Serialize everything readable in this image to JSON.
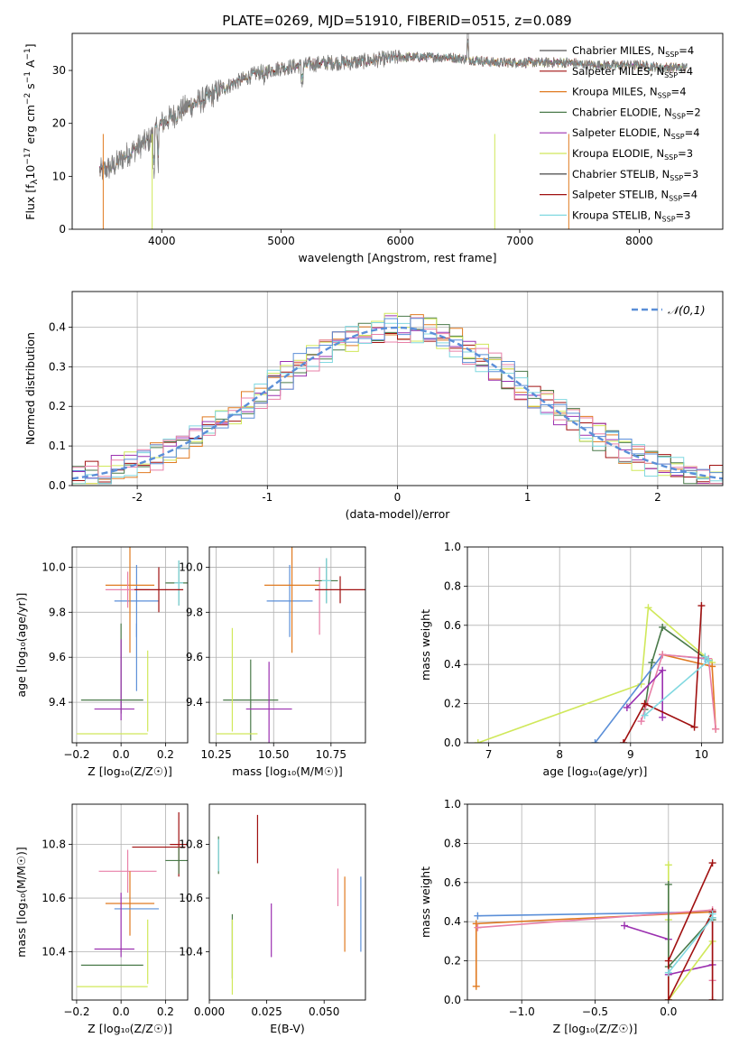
{
  "chart_data": [
    {
      "id": "spectrum",
      "type": "line",
      "title": "PLATE=0269, MJD=51910, FIBERID=0515, z=0.089",
      "xlabel": "wavelength [Angstrom, rest frame]",
      "ylabel": "Flux [f",
      "ylabel_parts": [
        "Flux [f",
        "λ",
        "10",
        "−17",
        " erg cm",
        "−2",
        " s",
        "−1",
        " A",
        "−1",
        "]"
      ],
      "xlim": [
        3250,
        8700
      ],
      "ylim": [
        0,
        37
      ],
      "xticks": [
        4000,
        5000,
        6000,
        7000,
        8000
      ],
      "yticks": [
        0,
        10,
        20,
        30
      ],
      "grid": false,
      "legend_position": "upper-right",
      "continuum": {
        "x": [
          3500,
          3600,
          3700,
          3800,
          3900,
          4000,
          4100,
          4200,
          4300,
          4400,
          4500,
          4600,
          4700,
          4800,
          4900,
          5000,
          5200,
          5400,
          5600,
          5800,
          6000,
          6200,
          6400,
          6600,
          6800,
          7000,
          7200,
          7400,
          7600,
          7800,
          8000,
          8200,
          8400
        ],
        "y": [
          11,
          12,
          14,
          15.5,
          17,
          20,
          21.5,
          23,
          24,
          25,
          26.5,
          27.5,
          28.5,
          29.5,
          30,
          30.5,
          31,
          31.5,
          31.5,
          32,
          32.5,
          32.5,
          32.5,
          32,
          31.5,
          31.5,
          31.5,
          31.5,
          31,
          31,
          31,
          30.5,
          30.5
        ]
      },
      "series": [
        {
          "name": "Chabrier MILES",
          "nssp": "4",
          "color": "#555555"
        },
        {
          "name": "Salpeter MILES",
          "nssp": "4",
          "color": "#a01010"
        },
        {
          "name": "Kroupa MILES",
          "nssp": "4",
          "color": "#e07a20"
        },
        {
          "name": "Chabrier ELODIE",
          "nssp": "2",
          "color": "#4a7a4a"
        },
        {
          "name": "Salpeter ELODIE",
          "nssp": "4",
          "color": "#9b30b0"
        },
        {
          "name": "Kroupa ELODIE",
          "nssp": "3",
          "color": "#d0e85a"
        },
        {
          "name": "Chabrier STELIB",
          "nssp": "3",
          "color": "#333333"
        },
        {
          "name": "Salpeter STELIB",
          "nssp": "4",
          "color": "#a01010"
        },
        {
          "name": "Kroupa STELIB",
          "nssp": "3",
          "color": "#80d8e0"
        }
      ],
      "observed_color": "#808080"
    },
    {
      "id": "residuals",
      "type": "line",
      "xlabel": "(data-model)/error",
      "ylabel": "Normed distribution",
      "xlim": [
        -2.5,
        2.5
      ],
      "ylim": [
        0,
        0.49
      ],
      "xticks": [
        -2,
        -1,
        0,
        1,
        2
      ],
      "yticks": [
        0.0,
        0.1,
        0.2,
        0.3,
        0.4
      ],
      "grid": true,
      "legend": "𝒩(0,1)",
      "legend_position": "upper-right",
      "gaussian_color": "#5b8fd8",
      "hist_colors": [
        "#e07a20",
        "#a01010",
        "#9b30b0",
        "#4a7a4a",
        "#d0e85a",
        "#80d8e0",
        "#e880a8",
        "#5b8fd8"
      ]
    },
    {
      "id": "age-vs-Z",
      "type": "scatter",
      "xlabel": "Z [log₁₀(Z/Z☉)]",
      "ylabel": "age  [log₁₀(age/yr)]",
      "xlim": [
        -0.22,
        0.3
      ],
      "ylim": [
        9.22,
        10.09
      ],
      "xticks": [
        -0.2,
        0.0,
        0.2
      ],
      "xticklabels": [
        "−0.2",
        "0.0",
        "0.2"
      ],
      "yticks": [
        9.4,
        9.6,
        9.8,
        10.0
      ],
      "yticklabels": [
        "9.4",
        "9.6",
        "9.8",
        "10.0"
      ],
      "grid": true,
      "points": [
        {
          "x": 0.07,
          "xerr": 0.1,
          "y": 9.85,
          "yerr": 0.16,
          "color": "#5b8fd8"
        },
        {
          "x": 0.04,
          "xerr": 0.11,
          "y": 9.92,
          "yerr": 0.3,
          "color": "#e07a20"
        },
        {
          "x": 0.03,
          "xerr": 0.1,
          "y": 9.9,
          "yerr": 0.08,
          "color": "#e880a8"
        },
        {
          "x": 0.26,
          "xerr": 0.06,
          "y": 9.93,
          "yerr": 0.1,
          "color": "#4a7a4a"
        },
        {
          "x": 0.26,
          "xerr": 0.02,
          "y": 9.93,
          "yerr": 0.1,
          "color": "#80d8e0"
        },
        {
          "x": 0.17,
          "xerr": 0.11,
          "y": 9.9,
          "yerr": 0.1,
          "color": "#a01010"
        },
        {
          "x": 0.07,
          "xerr": 0.0,
          "y": 9.6,
          "yerr": 0.15,
          "color": "#5b8fd8"
        },
        {
          "x": 0.12,
          "xerr": 0.0,
          "y": 9.45,
          "yerr": 0.18,
          "color": "#d0e85a"
        },
        {
          "x": 0.0,
          "xerr": 0.0,
          "y": 9.55,
          "yerr": 0.2,
          "color": "#4a7a4a"
        },
        {
          "x": 0.0,
          "xerr": 0.0,
          "y": 9.5,
          "yerr": 0.18,
          "color": "#9b30b0"
        },
        {
          "x": -0.04,
          "xerr": 0.14,
          "y": 9.41,
          "yerr": 0.0,
          "color": "#4a7a4a"
        },
        {
          "x": -0.03,
          "xerr": 0.09,
          "y": 9.37,
          "yerr": 0.0,
          "color": "#9b30b0"
        },
        {
          "x": -0.04,
          "xerr": 0.16,
          "y": 9.26,
          "yerr": 0.0,
          "color": "#d0e85a"
        }
      ]
    },
    {
      "id": "age-vs-mass",
      "type": "scatter",
      "xlabel": "mass [log₁₀(M/M☉)]",
      "ylabel": "",
      "xlim": [
        10.22,
        10.9
      ],
      "ylim": [
        9.22,
        10.09
      ],
      "xticks": [
        10.25,
        10.5,
        10.75
      ],
      "xticklabels": [
        "10.25",
        "10.50",
        "10.75"
      ],
      "yticks": [
        9.4,
        9.6,
        9.8,
        10.0
      ],
      "yticklabels": [
        "9.4",
        "9.6",
        "9.8",
        "10.0"
      ],
      "grid": true,
      "points": [
        {
          "x": 10.57,
          "xerr": 0.1,
          "y": 9.85,
          "yerr": 0.16,
          "color": "#5b8fd8"
        },
        {
          "x": 10.58,
          "xerr": 0.12,
          "y": 9.92,
          "yerr": 0.3,
          "color": "#e07a20"
        },
        {
          "x": 10.7,
          "xerr": 0.0,
          "y": 9.85,
          "yerr": 0.15,
          "color": "#e880a8"
        },
        {
          "x": 10.73,
          "xerr": 0.05,
          "y": 9.94,
          "yerr": 0.1,
          "color": "#4a7a4a"
        },
        {
          "x": 10.73,
          "xerr": 0.02,
          "y": 9.94,
          "yerr": 0.1,
          "color": "#80d8e0"
        },
        {
          "x": 10.79,
          "xerr": 0.11,
          "y": 9.9,
          "yerr": 0.06,
          "color": "#a01010"
        },
        {
          "x": 10.4,
          "xerr": 0.12,
          "y": 9.41,
          "yerr": 0.18,
          "color": "#4a7a4a"
        },
        {
          "x": 10.48,
          "xerr": 0.1,
          "y": 9.37,
          "yerr": 0.21,
          "color": "#9b30b0"
        },
        {
          "x": 10.32,
          "xerr": 0.0,
          "y": 9.5,
          "yerr": 0.23,
          "color": "#d0e85a"
        },
        {
          "x": 10.34,
          "xerr": 0.09,
          "y": 9.26,
          "yerr": 0.0,
          "color": "#d0e85a"
        }
      ]
    },
    {
      "id": "mass-weight-vs-age",
      "type": "line",
      "xlabel": "age  [log₁₀(age/yr)]",
      "ylabel": "mass weight",
      "xlim": [
        6.7,
        10.3
      ],
      "ylim": [
        0,
        1.0
      ],
      "xticks": [
        7,
        8,
        9,
        10
      ],
      "xticklabels": [
        "7",
        "8",
        "9",
        "10"
      ],
      "yticks": [
        0.0,
        0.2,
        0.4,
        0.6,
        0.8,
        1.0
      ],
      "yticklabels": [
        "0.0",
        "0.2",
        "0.4",
        "0.6",
        "0.8",
        "1.0"
      ],
      "grid": true,
      "series": [
        {
          "color": "#d0e85a",
          "x": [
            6.85,
            9.15,
            9.25,
            10.15
          ],
          "y": [
            0.0,
            0.3,
            0.69,
            0.41
          ]
        },
        {
          "color": "#4a7a4a",
          "x": [
            9.2,
            9.3,
            9.45,
            10.1
          ],
          "y": [
            0.17,
            0.41,
            0.59,
            0.42
          ]
        },
        {
          "color": "#5b8fd8",
          "x": [
            8.5,
            9.45,
            10.05,
            10.1
          ],
          "y": [
            0.0,
            0.45,
            0.43,
            0.42
          ]
        },
        {
          "color": "#e07a20",
          "x": [
            9.45,
            10.15,
            10.2
          ],
          "y": [
            0.45,
            0.39,
            0.07
          ]
        },
        {
          "color": "#e880a8",
          "x": [
            9.15,
            9.45,
            10.1,
            10.2
          ],
          "y": [
            0.11,
            0.45,
            0.43,
            0.07
          ]
        },
        {
          "color": "#9b30b0",
          "x": [
            8.95,
            9.45,
            9.45
          ],
          "y": [
            0.18,
            0.37,
            0.13
          ]
        },
        {
          "color": "#a01010",
          "x": [
            8.9,
            9.2,
            9.9,
            10.0
          ],
          "y": [
            0.0,
            0.2,
            0.08,
            0.7
          ]
        },
        {
          "color": "#80d8e0",
          "x": [
            9.2,
            10.1,
            10.05
          ],
          "y": [
            0.14,
            0.42,
            0.44
          ]
        }
      ]
    },
    {
      "id": "mass-vs-Z",
      "type": "scatter",
      "xlabel": "Z [log₁₀(Z/Z☉)]",
      "ylabel": "mass [log₁₀(M/M☉)]",
      "xlim": [
        -0.22,
        0.3
      ],
      "ylim": [
        10.22,
        10.95
      ],
      "xticks": [
        -0.2,
        0.0,
        0.2
      ],
      "xticklabels": [
        "−0.2",
        "0.0",
        "0.2"
      ],
      "yticks": [
        10.4,
        10.6,
        10.8
      ],
      "yticklabels": [
        "10.4",
        "10.6",
        "10.8"
      ],
      "grid": true,
      "points": [
        {
          "x": 0.26,
          "xerr": 0.04,
          "y": 10.8,
          "yerr": 0.12,
          "color": "#a01010"
        },
        {
          "x": 0.17,
          "xerr": 0.12,
          "y": 10.79,
          "yerr": 0.0,
          "color": "#a01010"
        },
        {
          "x": 0.26,
          "xerr": 0.06,
          "y": 10.74,
          "yerr": 0.05,
          "color": "#4a7a4a"
        },
        {
          "x": 0.03,
          "xerr": 0.13,
          "y": 10.7,
          "yerr": 0.08,
          "color": "#e880a8"
        },
        {
          "x": 0.04,
          "xerr": 0.11,
          "y": 10.58,
          "yerr": 0.12,
          "color": "#e07a20"
        },
        {
          "x": 0.07,
          "xerr": 0.1,
          "y": 10.56,
          "yerr": 0.0,
          "color": "#5b8fd8"
        },
        {
          "x": 0.0,
          "xerr": 0.0,
          "y": 10.5,
          "yerr": 0.12,
          "color": "#9b30b0"
        },
        {
          "x": 0.12,
          "xerr": 0.0,
          "y": 10.4,
          "yerr": 0.12,
          "color": "#d0e85a"
        },
        {
          "x": -0.03,
          "xerr": 0.09,
          "y": 10.41,
          "yerr": 0.0,
          "color": "#9b30b0"
        },
        {
          "x": -0.04,
          "xerr": 0.14,
          "y": 10.35,
          "yerr": 0.0,
          "color": "#4a7a4a"
        },
        {
          "x": -0.04,
          "xerr": 0.16,
          "y": 10.27,
          "yerr": 0.0,
          "color": "#d0e85a"
        }
      ]
    },
    {
      "id": "mass-vs-ebv",
      "type": "scatter",
      "xlabel": "E(B-V)",
      "ylabel": "",
      "xlim": [
        0.0,
        0.068
      ],
      "ylim": [
        10.22,
        10.95
      ],
      "xticks": [
        0.0,
        0.025,
        0.05
      ],
      "xticklabels": [
        "0.000",
        "0.025",
        "0.050"
      ],
      "yticks": [
        10.4,
        10.6,
        10.8
      ],
      "yticklabels": [
        "10.4",
        "10.6",
        "10.8"
      ],
      "grid": false,
      "points": [
        {
          "x": 0.004,
          "y": 10.76,
          "yerr": 0.07,
          "color": "#4a7a4a"
        },
        {
          "x": 0.004,
          "y": 10.76,
          "yerr": 0.06,
          "color": "#80d8e0"
        },
        {
          "x": 0.01,
          "y": 10.42,
          "yerr": 0.12,
          "color": "#4a7a4a"
        },
        {
          "x": 0.01,
          "y": 10.38,
          "yerr": 0.14,
          "color": "#d0e85a"
        },
        {
          "x": 0.021,
          "y": 10.82,
          "yerr": 0.09,
          "color": "#a01010"
        },
        {
          "x": 0.027,
          "y": 10.48,
          "yerr": 0.1,
          "color": "#9b30b0"
        },
        {
          "x": 0.056,
          "y": 10.64,
          "yerr": 0.07,
          "color": "#e880a8"
        },
        {
          "x": 0.059,
          "y": 10.54,
          "yerr": 0.14,
          "color": "#e07a20"
        },
        {
          "x": 0.066,
          "y": 10.54,
          "yerr": 0.14,
          "color": "#5b8fd8"
        }
      ]
    },
    {
      "id": "mass-weight-vs-Z",
      "type": "line",
      "xlabel": "Z [log₁₀(Z/Z☉)]",
      "ylabel": "mass weight",
      "xlim": [
        -1.37,
        0.37
      ],
      "ylim": [
        0,
        1.0
      ],
      "xticks": [
        -1.0,
        -0.5,
        0.0
      ],
      "xticklabels": [
        "−1.0",
        "−0.5",
        "0.0"
      ],
      "yticks": [
        0.0,
        0.2,
        0.4,
        0.6,
        0.8,
        1.0
      ],
      "yticklabels": [
        "0.0",
        "0.2",
        "0.4",
        "0.6",
        "0.8",
        "1.0"
      ],
      "grid": true,
      "series": [
        {
          "color": "#5b8fd8",
          "x": [
            -1.3,
            0.3
          ],
          "y": [
            0.43,
            0.45
          ]
        },
        {
          "color": "#e07a20",
          "x": [
            -1.31,
            -1.31,
            0.3
          ],
          "y": [
            0.07,
            0.39,
            0.45
          ]
        },
        {
          "color": "#e880a8",
          "x": [
            -1.3,
            0.3,
            0.3
          ],
          "y": [
            0.37,
            0.46,
            0.1
          ]
        },
        {
          "color": "#9b30b0",
          "x": [
            -0.3,
            0.0,
            0.0,
            0.3
          ],
          "y": [
            0.38,
            0.31,
            0.13,
            0.18
          ]
        },
        {
          "color": "#d0e85a",
          "x": [
            0.0,
            0.0,
            0.0,
            0.3
          ],
          "y": [
            0.69,
            0.41,
            0.0,
            0.3
          ]
        },
        {
          "color": "#4a7a4a",
          "x": [
            0.0,
            0.0,
            0.3,
            0.3
          ],
          "y": [
            0.59,
            0.17,
            0.42,
            0.41
          ]
        },
        {
          "color": "#a01010",
          "x": [
            0.3,
            0.0,
            0.0,
            0.3,
            0.3
          ],
          "y": [
            0.7,
            0.2,
            0.0,
            0.45,
            0.0
          ]
        },
        {
          "color": "#80d8e0",
          "x": [
            0.0,
            0.3,
            0.3
          ],
          "y": [
            0.14,
            0.42,
            0.44
          ]
        }
      ]
    }
  ]
}
